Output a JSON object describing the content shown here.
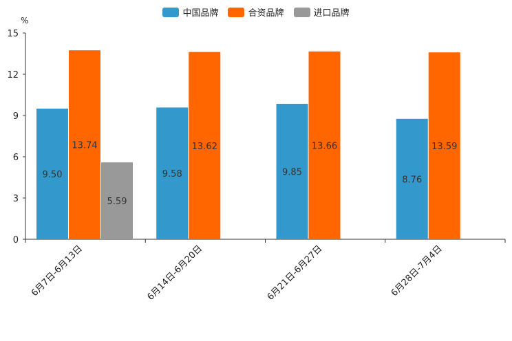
{
  "chart_data": {
    "type": "bar",
    "unit_label": "%",
    "categories": [
      "6月7日-6月13日",
      "6月14日-6月20日",
      "6月21日-6月27日",
      "6月28日-7月4日"
    ],
    "series": [
      {
        "name": "中国品牌",
        "color": "#3399cc",
        "values": [
          9.5,
          9.58,
          9.85,
          8.76
        ]
      },
      {
        "name": "合资品牌",
        "color": "#ff6600",
        "values": [
          13.74,
          13.62,
          13.66,
          13.59
        ]
      },
      {
        "name": "进口品牌",
        "color": "#999999",
        "values": [
          5.59,
          null,
          null,
          null
        ]
      }
    ],
    "value_labels": [
      [
        "9.50",
        "9.58",
        "9.85",
        "8.76"
      ],
      [
        "13.74",
        "13.62",
        "13.66",
        "13.59"
      ],
      [
        "5.59",
        null,
        null,
        null
      ]
    ],
    "ylim": [
      0,
      15
    ],
    "yticks": [
      "0",
      "3",
      "6",
      "9",
      "12",
      "15"
    ],
    "legend_position": "top-center"
  }
}
